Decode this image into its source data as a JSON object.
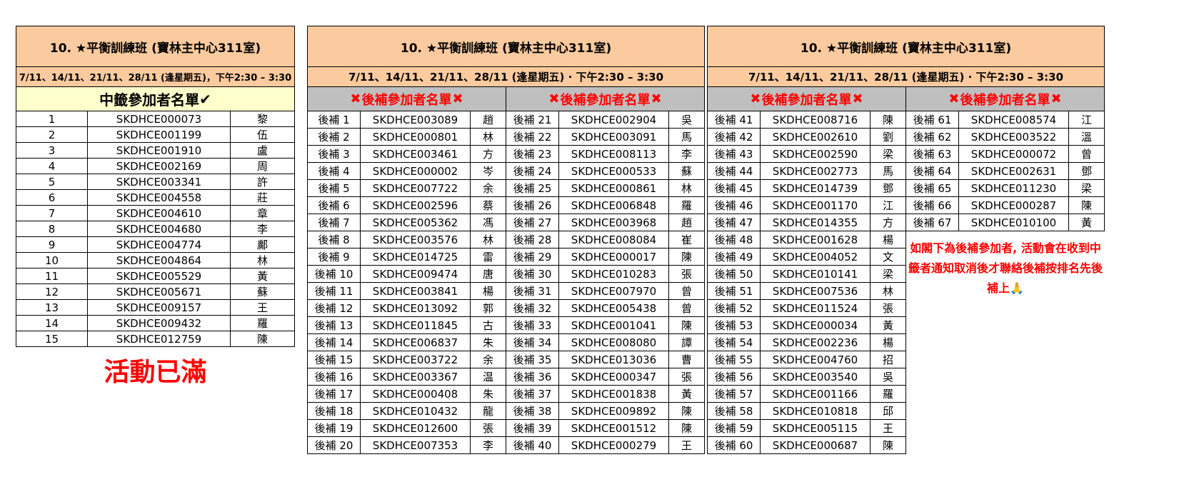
{
  "colors": {
    "panel_header_bg": "#FBCA9E",
    "winners_header_bg": "#FFFFCC",
    "waitlist_header_bg": "#BFBFBF",
    "alert_red": "#FF0000",
    "border": "#000000"
  },
  "icons": {
    "check": "✔",
    "cross": "✖",
    "pray": "🙏"
  },
  "left_table": {
    "title": "10. ★平衡訓練班 (寶林主中心311室)",
    "schedule": "7/11、14/11、21/11、28/11 (逢星期五)，下午2:30 – 3:30",
    "header_text": "中籤參加者名單",
    "rows": [
      {
        "num": "1",
        "code": "SKDHCE000073",
        "name": "黎"
      },
      {
        "num": "2",
        "code": "SKDHCE001199",
        "name": "伍"
      },
      {
        "num": "3",
        "code": "SKDHCE001910",
        "name": "盧"
      },
      {
        "num": "4",
        "code": "SKDHCE002169",
        "name": "周"
      },
      {
        "num": "5",
        "code": "SKDHCE003341",
        "name": "許"
      },
      {
        "num": "6",
        "code": "SKDHCE004558",
        "name": "莊"
      },
      {
        "num": "7",
        "code": "SKDHCE004610",
        "name": "章"
      },
      {
        "num": "8",
        "code": "SKDHCE004680",
        "name": "李"
      },
      {
        "num": "9",
        "code": "SKDHCE004774",
        "name": "鄺"
      },
      {
        "num": "10",
        "code": "SKDHCE004864",
        "name": "林"
      },
      {
        "num": "11",
        "code": "SKDHCE005529",
        "name": "黃"
      },
      {
        "num": "12",
        "code": "SKDHCE005671",
        "name": "蘇"
      },
      {
        "num": "13",
        "code": "SKDHCE009157",
        "name": "王"
      },
      {
        "num": "14",
        "code": "SKDHCE009432",
        "name": "羅"
      },
      {
        "num": "15",
        "code": "SKDHCE012759",
        "name": "陳"
      }
    ],
    "full_notice": "活動已滿"
  },
  "middle_table": {
    "title": "10. ★平衡訓練班 (寶林主中心311室)",
    "schedule": "7/11、14/11、21/11、28/11 (逢星期五) · 下午2:30 – 3:30",
    "left_header_text": "後補參加者名單",
    "right_header_text": "後補參加者名單",
    "left_rows": [
      {
        "label": "後補 1",
        "code": "SKDHCE003089",
        "name": "趙"
      },
      {
        "label": "後補 2",
        "code": "SKDHCE000801",
        "name": "林"
      },
      {
        "label": "後補 3",
        "code": "SKDHCE003461",
        "name": "方"
      },
      {
        "label": "後補 4",
        "code": "SKDHCE000002",
        "name": "岑"
      },
      {
        "label": "後補 5",
        "code": "SKDHCE007722",
        "name": "余"
      },
      {
        "label": "後補 6",
        "code": "SKDHCE002596",
        "name": "蔡"
      },
      {
        "label": "後補 7",
        "code": "SKDHCE005362",
        "name": "馮"
      },
      {
        "label": "後補 8",
        "code": "SKDHCE003576",
        "name": "林"
      },
      {
        "label": "後補 9",
        "code": "SKDHCE014725",
        "name": "雷"
      },
      {
        "label": "後補 10",
        "code": "SKDHCE009474",
        "name": "唐"
      },
      {
        "label": "後補 11",
        "code": "SKDHCE003841",
        "name": "楊"
      },
      {
        "label": "後補 12",
        "code": "SKDHCE013092",
        "name": "郭"
      },
      {
        "label": "後補 13",
        "code": "SKDHCE011845",
        "name": "古"
      },
      {
        "label": "後補 14",
        "code": "SKDHCE006837",
        "name": "朱"
      },
      {
        "label": "後補 15",
        "code": "SKDHCE003722",
        "name": "余"
      },
      {
        "label": "後補 16",
        "code": "SKDHCE003367",
        "name": "温"
      },
      {
        "label": "後補 17",
        "code": "SKDHCE000408",
        "name": "朱"
      },
      {
        "label": "後補 18",
        "code": "SKDHCE010432",
        "name": "龍"
      },
      {
        "label": "後補 19",
        "code": "SKDHCE012600",
        "name": "張"
      },
      {
        "label": "後補 20",
        "code": "SKDHCE007353",
        "name": "李"
      }
    ],
    "right_rows": [
      {
        "label": "後補 21",
        "code": "SKDHCE002904",
        "name": "吳"
      },
      {
        "label": "後補 22",
        "code": "SKDHCE003091",
        "name": "馬"
      },
      {
        "label": "後補 23",
        "code": "SKDHCE008113",
        "name": "李"
      },
      {
        "label": "後補 24",
        "code": "SKDHCE000533",
        "name": "蘇"
      },
      {
        "label": "後補 25",
        "code": "SKDHCE000861",
        "name": "林"
      },
      {
        "label": "後補 26",
        "code": "SKDHCE006848",
        "name": "羅"
      },
      {
        "label": "後補 27",
        "code": "SKDHCE003968",
        "name": "趙"
      },
      {
        "label": "後補 28",
        "code": "SKDHCE008084",
        "name": "崔"
      },
      {
        "label": "後補 29",
        "code": "SKDHCE000017",
        "name": "陳"
      },
      {
        "label": "後補 30",
        "code": "SKDHCE010283",
        "name": "張"
      },
      {
        "label": "後補 31",
        "code": "SKDHCE007970",
        "name": "曾"
      },
      {
        "label": "後補 32",
        "code": "SKDHCE005438",
        "name": "曾"
      },
      {
        "label": "後補 33",
        "code": "SKDHCE001041",
        "name": "陳"
      },
      {
        "label": "後補 34",
        "code": "SKDHCE008080",
        "name": "譚"
      },
      {
        "label": "後補 35",
        "code": "SKDHCE013036",
        "name": "曹"
      },
      {
        "label": "後補 36",
        "code": "SKDHCE000347",
        "name": "張"
      },
      {
        "label": "後補 37",
        "code": "SKDHCE001838",
        "name": "黃"
      },
      {
        "label": "後補 38",
        "code": "SKDHCE009892",
        "name": "陳"
      },
      {
        "label": "後補 39",
        "code": "SKDHCE001512",
        "name": "陳"
      },
      {
        "label": "後補 40",
        "code": "SKDHCE000279",
        "name": "王"
      }
    ]
  },
  "right_table": {
    "title": "10. ★平衡訓練班 (寶林主中心311室)",
    "schedule": "7/11、14/11、21/11、28/11 (逢星期五) · 下午2:30 – 3:30",
    "left_header_text": "後補參加者名單",
    "right_header_text": "後補參加者名單",
    "left_rows": [
      {
        "label": "後補 41",
        "code": "SKDHCE008716",
        "name": "陳"
      },
      {
        "label": "後補 42",
        "code": "SKDHCE002610",
        "name": "劉"
      },
      {
        "label": "後補 43",
        "code": "SKDHCE002590",
        "name": "梁"
      },
      {
        "label": "後補 44",
        "code": "SKDHCE002773",
        "name": "馬"
      },
      {
        "label": "後補 45",
        "code": "SKDHCE014739",
        "name": "鄧"
      },
      {
        "label": "後補 46",
        "code": "SKDHCE001170",
        "name": "江"
      },
      {
        "label": "後補 47",
        "code": "SKDHCE014355",
        "name": "方"
      },
      {
        "label": "後補 48",
        "code": "SKDHCE001628",
        "name": "楊"
      },
      {
        "label": "後補 49",
        "code": "SKDHCE004052",
        "name": "文"
      },
      {
        "label": "後補 50",
        "code": "SKDHCE010141",
        "name": "梁"
      },
      {
        "label": "後補 51",
        "code": "SKDHCE007536",
        "name": "林"
      },
      {
        "label": "後補 52",
        "code": "SKDHCE011524",
        "name": "張"
      },
      {
        "label": "後補 53",
        "code": "SKDHCE000034",
        "name": "黃"
      },
      {
        "label": "後補 54",
        "code": "SKDHCE002236",
        "name": "楊"
      },
      {
        "label": "後補 55",
        "code": "SKDHCE004760",
        "name": "招"
      },
      {
        "label": "後補 56",
        "code": "SKDHCE003540",
        "name": "吳"
      },
      {
        "label": "後補 57",
        "code": "SKDHCE001166",
        "name": "羅"
      },
      {
        "label": "後補 58",
        "code": "SKDHCE010818",
        "name": "邱"
      },
      {
        "label": "後補 59",
        "code": "SKDHCE005115",
        "name": "王"
      },
      {
        "label": "後補 60",
        "code": "SKDHCE000687",
        "name": "陳"
      }
    ],
    "right_rows": [
      {
        "label": "後補 61",
        "code": "SKDHCE008574",
        "name": "江"
      },
      {
        "label": "後補 62",
        "code": "SKDHCE003522",
        "name": "溫"
      },
      {
        "label": "後補 63",
        "code": "SKDHCE000072",
        "name": "曾"
      },
      {
        "label": "後補 64",
        "code": "SKDHCE002631",
        "name": "鄧"
      },
      {
        "label": "後補 65",
        "code": "SKDHCE011230",
        "name": "梁"
      },
      {
        "label": "後補 66",
        "code": "SKDHCE000287",
        "name": "陳"
      },
      {
        "label": "後補 67",
        "code": "SKDHCE010100",
        "name": "黃"
      }
    ],
    "note": "如閣下為後補參加者, 活動會在收到中籤者通知取消後才聯絡後補按排名先後補上"
  }
}
